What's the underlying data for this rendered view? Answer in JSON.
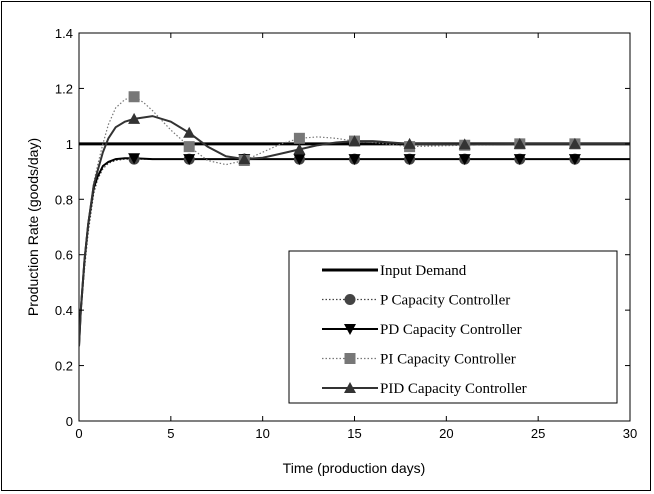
{
  "chart_data": {
    "type": "line",
    "xlabel": "Time (production days)",
    "ylabel": "Production Rate (goods/day)",
    "xlim": [
      0,
      30
    ],
    "ylim": [
      0,
      1.4
    ],
    "xticks": [
      0,
      5,
      10,
      15,
      20,
      25,
      30
    ],
    "yticks": [
      0,
      0.2,
      0.4,
      0.6,
      0.8,
      1,
      1.2,
      1.4
    ],
    "ytick_labels": [
      "0",
      "0.2",
      "0.4",
      "0.6",
      "0.8",
      "1",
      "1.2",
      "1.4"
    ],
    "grid": false,
    "legend_position": "lower-right",
    "series": [
      {
        "name": "Input Demand",
        "marker": "none",
        "line_style": "solid-thick",
        "color": "#000000",
        "x": [
          0,
          30
        ],
        "y": [
          1.0,
          1.0
        ],
        "marker_x": []
      },
      {
        "name": "P Capacity Controller",
        "marker": "circle",
        "line_style": "dotted",
        "color": "#444444",
        "x": [
          0,
          0.1,
          0.3,
          0.5,
          0.8,
          1.0,
          1.3,
          1.6,
          2.0,
          2.5,
          3,
          4,
          6,
          9,
          12,
          15,
          18,
          21,
          24,
          27,
          30
        ],
        "y": [
          0.27,
          0.38,
          0.55,
          0.68,
          0.82,
          0.87,
          0.91,
          0.93,
          0.94,
          0.945,
          0.945,
          0.945,
          0.945,
          0.945,
          0.945,
          0.945,
          0.945,
          0.945,
          0.945,
          0.945,
          0.945
        ],
        "marker_x": [
          3,
          6,
          9,
          12,
          15,
          18,
          21,
          24,
          27
        ]
      },
      {
        "name": "PD Capacity Controller",
        "marker": "triangle-down",
        "line_style": "solid",
        "color": "#000000",
        "x": [
          0,
          0.1,
          0.3,
          0.5,
          0.8,
          1.0,
          1.3,
          1.6,
          2.0,
          2.5,
          3,
          4,
          6,
          9,
          12,
          15,
          18,
          21,
          24,
          27,
          30
        ],
        "y": [
          0.27,
          0.4,
          0.58,
          0.71,
          0.84,
          0.88,
          0.92,
          0.935,
          0.945,
          0.948,
          0.948,
          0.945,
          0.945,
          0.945,
          0.945,
          0.945,
          0.945,
          0.945,
          0.945,
          0.945,
          0.945
        ],
        "marker_x": [
          3,
          6,
          9,
          12,
          15,
          18,
          21,
          24,
          27
        ]
      },
      {
        "name": "PI Capacity Controller",
        "marker": "square",
        "line_style": "dotted",
        "color": "#777777",
        "x": [
          0,
          0.1,
          0.3,
          0.5,
          0.8,
          1.0,
          1.3,
          1.6,
          2.0,
          2.5,
          3,
          3.5,
          4,
          5,
          6,
          7,
          8,
          9,
          10,
          11,
          12,
          13,
          14,
          15,
          16,
          18,
          21,
          24,
          27,
          30
        ],
        "y": [
          0.27,
          0.4,
          0.58,
          0.72,
          0.86,
          0.92,
          1.0,
          1.07,
          1.13,
          1.16,
          1.17,
          1.15,
          1.12,
          1.05,
          0.99,
          0.94,
          0.925,
          0.94,
          0.97,
          1.0,
          1.02,
          1.025,
          1.02,
          1.01,
          1.005,
          0.99,
          0.995,
          1.0,
          1.0,
          1.0
        ],
        "marker_x": [
          3,
          6,
          9,
          12,
          15,
          18,
          21,
          24,
          27
        ]
      },
      {
        "name": "PID Capacity Controller",
        "marker": "triangle-up",
        "line_style": "solid",
        "color": "#333333",
        "x": [
          0,
          0.1,
          0.3,
          0.5,
          0.8,
          1.0,
          1.3,
          1.6,
          2.0,
          2.5,
          3,
          4,
          5,
          6,
          7,
          8,
          9,
          10,
          11,
          12,
          13,
          14,
          15,
          16,
          17,
          18,
          21,
          24,
          27,
          30
        ],
        "y": [
          0.27,
          0.4,
          0.58,
          0.71,
          0.85,
          0.9,
          0.97,
          1.02,
          1.06,
          1.08,
          1.09,
          1.1,
          1.08,
          1.04,
          0.99,
          0.955,
          0.945,
          0.95,
          0.965,
          0.98,
          0.995,
          1.005,
          1.01,
          1.01,
          1.005,
          1.0,
          0.998,
          1.0,
          1.0,
          1.0
        ],
        "marker_x": [
          3,
          6,
          9,
          12,
          15,
          18,
          21,
          24,
          27
        ]
      }
    ]
  }
}
